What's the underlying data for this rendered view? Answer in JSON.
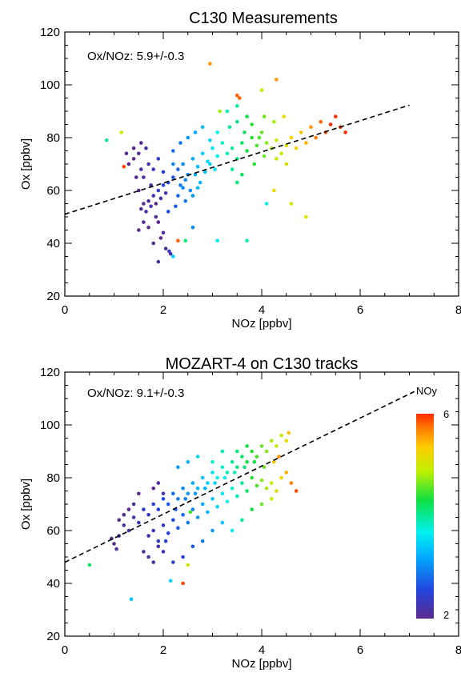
{
  "chart_data": [
    {
      "type": "scatter",
      "title": "C130 Measurements",
      "xlabel": "NOz [ppbv]",
      "ylabel": "Ox [ppbv]",
      "xlim": [
        0,
        8
      ],
      "ylim": [
        20,
        120
      ],
      "xticks": [
        "0",
        "2",
        "4",
        "6",
        "8"
      ],
      "yticks": [
        "20",
        "40",
        "60",
        "80",
        "100",
        "120"
      ],
      "annotation": "Ox/NOz:  5.9+/-0.3",
      "fit_line": {
        "intercept": 51.0,
        "slope": 5.9,
        "x_range": [
          0,
          7.0
        ]
      },
      "color_variable_range": [
        2,
        6
      ],
      "grid": false,
      "points": [
        [
          1.55,
          53,
          2.1
        ],
        [
          1.6,
          55,
          2.0
        ],
        [
          1.65,
          52,
          2.2
        ],
        [
          1.7,
          56,
          2.1
        ],
        [
          1.75,
          54,
          2.3
        ],
        [
          1.8,
          58,
          2.2
        ],
        [
          1.85,
          55,
          2.0
        ],
        [
          1.9,
          60,
          2.4
        ],
        [
          1.95,
          57,
          2.2
        ],
        [
          2.0,
          62,
          2.5
        ],
        [
          2.05,
          59,
          2.3
        ],
        [
          2.1,
          63,
          2.6
        ],
        [
          1.5,
          60,
          2.0
        ],
        [
          1.6,
          65,
          2.1
        ],
        [
          1.7,
          70,
          2.2
        ],
        [
          1.8,
          68,
          2.3
        ],
        [
          1.9,
          72,
          2.4
        ],
        [
          2.0,
          67,
          2.5
        ],
        [
          1.4,
          72,
          2.0
        ],
        [
          1.5,
          74,
          2.1
        ],
        [
          1.65,
          76,
          2.2
        ],
        [
          1.3,
          70,
          2.0
        ],
        [
          1.75,
          62,
          2.2
        ],
        [
          1.85,
          50,
          2.1
        ],
        [
          1.9,
          48,
          2.0
        ],
        [
          1.7,
          46,
          2.0
        ],
        [
          2.0,
          44,
          2.1
        ],
        [
          1.95,
          42,
          2.0
        ],
        [
          1.8,
          40,
          2.0
        ],
        [
          2.05,
          38,
          2.1
        ],
        [
          2.15,
          36,
          2.2
        ],
        [
          2.2,
          35,
          3.5
        ],
        [
          2.12,
          37,
          2.3
        ],
        [
          1.9,
          33,
          2.1
        ],
        [
          1.45,
          65,
          2.0
        ],
        [
          1.55,
          68,
          2.1
        ],
        [
          2.2,
          65,
          2.7
        ],
        [
          2.3,
          68,
          2.8
        ],
        [
          2.4,
          70,
          3.0
        ],
        [
          2.5,
          66,
          3.1
        ],
        [
          2.6,
          72,
          3.2
        ],
        [
          2.7,
          69,
          3.3
        ],
        [
          2.8,
          74,
          3.4
        ],
        [
          2.9,
          71,
          3.5
        ],
        [
          3.0,
          76,
          3.6
        ],
        [
          3.1,
          73,
          3.7
        ],
        [
          3.2,
          78,
          3.8
        ],
        [
          2.35,
          62,
          2.9
        ],
        [
          2.45,
          64,
          3.0
        ],
        [
          2.55,
          60,
          3.0
        ],
        [
          2.65,
          66,
          3.2
        ],
        [
          2.75,
          63,
          3.3
        ],
        [
          2.85,
          67,
          3.4
        ],
        [
          2.95,
          70,
          3.5
        ],
        [
          3.05,
          68,
          3.6
        ],
        [
          2.2,
          75,
          2.8
        ],
        [
          2.35,
          78,
          2.9
        ],
        [
          2.5,
          80,
          3.1
        ],
        [
          2.65,
          82,
          3.2
        ],
        [
          2.8,
          84,
          3.3
        ],
        [
          2.95,
          79,
          3.5
        ],
        [
          3.1,
          82,
          3.7
        ],
        [
          2.3,
          58,
          2.8
        ],
        [
          2.45,
          56,
          2.9
        ],
        [
          2.6,
          58,
          3.1
        ],
        [
          2.25,
          54,
          2.7
        ],
        [
          3.3,
          74,
          3.9
        ],
        [
          3.4,
          76,
          4.0
        ],
        [
          3.5,
          72,
          4.1
        ],
        [
          3.6,
          78,
          4.2
        ],
        [
          3.7,
          75,
          4.3
        ],
        [
          3.8,
          80,
          4.4
        ],
        [
          3.9,
          77,
          4.5
        ],
        [
          4.0,
          82,
          4.6
        ],
        [
          3.35,
          84,
          4.0
        ],
        [
          3.5,
          86,
          4.1
        ],
        [
          3.65,
          82,
          4.2
        ],
        [
          3.8,
          85,
          4.4
        ],
        [
          3.95,
          80,
          4.5
        ],
        [
          4.1,
          78,
          4.7
        ],
        [
          4.2,
          76,
          4.8
        ],
        [
          4.3,
          79,
          4.9
        ],
        [
          4.4,
          74,
          5.0
        ],
        [
          4.5,
          77,
          5.1
        ],
        [
          4.6,
          80,
          5.2
        ],
        [
          4.7,
          76,
          5.3
        ],
        [
          4.8,
          82,
          5.4
        ],
        [
          4.9,
          78,
          5.5
        ],
        [
          5.0,
          84,
          5.6
        ],
        [
          5.1,
          80,
          5.7
        ],
        [
          5.2,
          86,
          5.8
        ],
        [
          5.3,
          82,
          5.9
        ],
        [
          5.4,
          85,
          6.0
        ],
        [
          5.5,
          88,
          6.0
        ],
        [
          5.6,
          84,
          6.0
        ],
        [
          5.7,
          82,
          6.0
        ],
        [
          3.3,
          90,
          3.9
        ],
        [
          3.5,
          92,
          4.0
        ],
        [
          3.7,
          88,
          4.3
        ],
        [
          4.05,
          88,
          4.6
        ],
        [
          4.25,
          86,
          4.8
        ],
        [
          3.4,
          68,
          4.0
        ],
        [
          3.6,
          66,
          4.2
        ],
        [
          3.85,
          70,
          4.4
        ],
        [
          4.05,
          73,
          4.6
        ],
        [
          4.3,
          72,
          4.9
        ],
        [
          4.5,
          70,
          5.1
        ],
        [
          2.95,
          108,
          5.6
        ],
        [
          3.5,
          96,
          5.8
        ],
        [
          3.55,
          95,
          5.8
        ],
        [
          4.0,
          98,
          5.0
        ],
        [
          4.3,
          102,
          5.6
        ],
        [
          4.45,
          88,
          5.2
        ],
        [
          3.15,
          90,
          4.8
        ],
        [
          1.15,
          82,
          5.0
        ],
        [
          0.85,
          79,
          4.0
        ],
        [
          1.5,
          45,
          1.9
        ],
        [
          1.6,
          48,
          2.0
        ],
        [
          2.45,
          41,
          4.1
        ],
        [
          3.1,
          41,
          3.6
        ],
        [
          3.7,
          41,
          3.9
        ],
        [
          4.1,
          55,
          3.7
        ],
        [
          4.6,
          55,
          5.0
        ],
        [
          4.9,
          50,
          5.1
        ],
        [
          4.25,
          60,
          5.2
        ],
        [
          2.3,
          41,
          5.8
        ],
        [
          2.6,
          46,
          3.0
        ],
        [
          3.5,
          63,
          4.1
        ],
        [
          1.55,
          78,
          2.0
        ],
        [
          1.4,
          76,
          1.9
        ],
        [
          1.25,
          74,
          2.0
        ],
        [
          1.2,
          69,
          5.9
        ],
        [
          2.2,
          70,
          3.0
        ],
        [
          2.1,
          52,
          2.6
        ],
        [
          2.4,
          61,
          3.0
        ],
        [
          2.7,
          61,
          3.3
        ]
      ]
    },
    {
      "type": "scatter",
      "title": "MOZART-4 on C130 tracks",
      "xlabel": "NOz [ppbv]",
      "ylabel": "Ox [ppbv]",
      "xlim": [
        0,
        8
      ],
      "ylim": [
        20,
        120
      ],
      "xticks": [
        "0",
        "2",
        "4",
        "6",
        "8"
      ],
      "yticks": [
        "20",
        "40",
        "60",
        "80",
        "100",
        "120"
      ],
      "annotation": "Ox/NOz:  9.1+/-0.3",
      "fit_line": {
        "intercept": 48.0,
        "slope": 9.1,
        "x_range": [
          0,
          7.1
        ]
      },
      "colorbar": {
        "label": "NOy",
        "min_label": "2",
        "max_label": "6",
        "range": [
          2,
          6
        ]
      },
      "grid": false,
      "points": [
        [
          1.0,
          55,
          2.0
        ],
        [
          1.1,
          58,
          2.1
        ],
        [
          1.2,
          62,
          2.1
        ],
        [
          1.3,
          60,
          2.2
        ],
        [
          1.4,
          65,
          2.3
        ],
        [
          1.5,
          63,
          2.3
        ],
        [
          1.6,
          68,
          2.4
        ],
        [
          1.7,
          66,
          2.4
        ],
        [
          1.8,
          70,
          2.5
        ],
        [
          1.9,
          68,
          2.5
        ],
        [
          2.0,
          72,
          2.6
        ],
        [
          2.1,
          70,
          2.7
        ],
        [
          2.2,
          74,
          2.8
        ],
        [
          2.3,
          72,
          2.9
        ],
        [
          2.4,
          76,
          3.0
        ],
        [
          2.5,
          74,
          3.1
        ],
        [
          2.6,
          78,
          3.2
        ],
        [
          2.7,
          76,
          3.3
        ],
        [
          2.8,
          80,
          3.4
        ],
        [
          2.9,
          78,
          3.5
        ],
        [
          3.0,
          82,
          3.6
        ],
        [
          3.1,
          80,
          3.7
        ],
        [
          3.2,
          84,
          3.8
        ],
        [
          3.3,
          82,
          3.9
        ],
        [
          3.4,
          86,
          4.0
        ],
        [
          3.5,
          84,
          4.1
        ],
        [
          3.6,
          88,
          4.2
        ],
        [
          3.7,
          86,
          4.3
        ],
        [
          3.8,
          90,
          4.4
        ],
        [
          3.9,
          88,
          4.5
        ],
        [
          4.0,
          92,
          4.6
        ],
        [
          4.1,
          90,
          4.7
        ],
        [
          4.2,
          94,
          4.8
        ],
        [
          4.3,
          92,
          4.9
        ],
        [
          4.4,
          96,
          5.0
        ],
        [
          4.5,
          94,
          5.2
        ],
        [
          4.55,
          97,
          5.4
        ],
        [
          1.7,
          58,
          2.2
        ],
        [
          1.8,
          60,
          2.3
        ],
        [
          1.9,
          56,
          2.3
        ],
        [
          2.0,
          62,
          2.4
        ],
        [
          2.1,
          59,
          2.5
        ],
        [
          2.2,
          64,
          2.6
        ],
        [
          2.3,
          61,
          2.7
        ],
        [
          2.4,
          66,
          2.8
        ],
        [
          2.5,
          63,
          2.9
        ],
        [
          2.6,
          68,
          3.0
        ],
        [
          2.7,
          65,
          3.1
        ],
        [
          2.8,
          70,
          3.2
        ],
        [
          2.9,
          67,
          3.3
        ],
        [
          3.0,
          72,
          3.4
        ],
        [
          3.1,
          69,
          3.5
        ],
        [
          3.2,
          74,
          3.6
        ],
        [
          3.3,
          71,
          3.7
        ],
        [
          3.4,
          76,
          3.8
        ],
        [
          3.5,
          73,
          3.9
        ],
        [
          3.6,
          78,
          4.0
        ],
        [
          3.7,
          75,
          4.2
        ],
        [
          3.8,
          80,
          4.4
        ],
        [
          3.9,
          77,
          4.5
        ],
        [
          4.0,
          79,
          4.7
        ],
        [
          4.1,
          76,
          4.8
        ],
        [
          4.2,
          78,
          4.9
        ],
        [
          4.3,
          75,
          5.1
        ],
        [
          4.4,
          80,
          5.3
        ],
        [
          4.5,
          82,
          5.5
        ],
        [
          4.6,
          78,
          5.7
        ],
        [
          4.7,
          75,
          5.9
        ],
        [
          4.25,
          86,
          5.4
        ],
        [
          4.35,
          88,
          5.6
        ],
        [
          1.6,
          52,
          2.1
        ],
        [
          1.7,
          50,
          2.1
        ],
        [
          1.8,
          48,
          2.2
        ],
        [
          1.9,
          54,
          2.2
        ],
        [
          2.0,
          52,
          2.3
        ],
        [
          1.8,
          76,
          2.0
        ],
        [
          1.9,
          78,
          2.1
        ],
        [
          2.0,
          74,
          2.2
        ],
        [
          1.5,
          74,
          2.0
        ],
        [
          1.4,
          70,
          2.1
        ],
        [
          1.3,
          68,
          2.0
        ],
        [
          1.2,
          66,
          2.0
        ],
        [
          1.1,
          64,
          2.0
        ],
        [
          0.95,
          57,
          2.0
        ],
        [
          1.05,
          53,
          2.1
        ],
        [
          2.2,
          48,
          2.4
        ],
        [
          2.4,
          50,
          2.5
        ],
        [
          2.6,
          54,
          2.7
        ],
        [
          2.8,
          56,
          2.9
        ],
        [
          3.0,
          60,
          3.1
        ],
        [
          3.2,
          63,
          3.4
        ],
        [
          2.3,
          84,
          3.1
        ],
        [
          2.5,
          86,
          3.3
        ],
        [
          2.7,
          88,
          3.5
        ],
        [
          3.0,
          86,
          3.8
        ],
        [
          3.2,
          90,
          3.9
        ],
        [
          3.5,
          90,
          4.1
        ],
        [
          3.7,
          92,
          4.3
        ],
        [
          3.4,
          60,
          3.7
        ],
        [
          3.6,
          64,
          4.0
        ],
        [
          3.8,
          68,
          4.3
        ],
        [
          4.0,
          70,
          4.6
        ],
        [
          4.2,
          72,
          4.9
        ],
        [
          0.5,
          47,
          4.2
        ],
        [
          1.35,
          34,
          3.4
        ],
        [
          2.15,
          41,
          3.5
        ],
        [
          2.4,
          40,
          5.9
        ],
        [
          2.5,
          47,
          5.0
        ],
        [
          2.55,
          67,
          4.5
        ],
        [
          2.05,
          56,
          2.5
        ],
        [
          2.25,
          68,
          2.7
        ],
        [
          2.45,
          72,
          2.9
        ],
        [
          2.65,
          74,
          3.1
        ],
        [
          2.85,
          76,
          3.3
        ],
        [
          3.05,
          78,
          3.5
        ],
        [
          3.25,
          80,
          3.7
        ],
        [
          3.45,
          82,
          3.9
        ],
        [
          3.65,
          84,
          4.1
        ],
        [
          3.85,
          86,
          4.3
        ],
        [
          4.05,
          84,
          4.6
        ]
      ]
    }
  ]
}
